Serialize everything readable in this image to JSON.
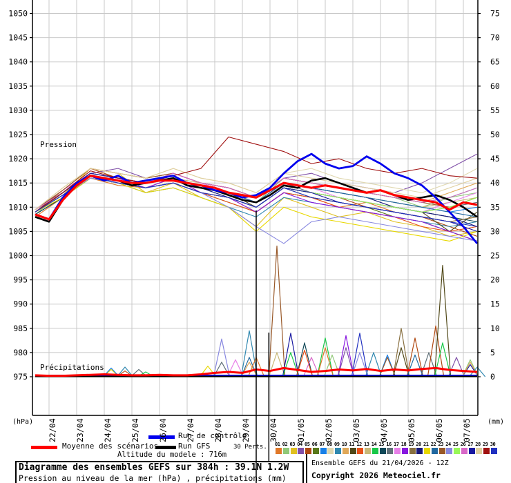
{
  "axis_labels": {
    "pressure_zone": "Pression",
    "precip_zone": "Précipitations",
    "left_unit": "(hPa)",
    "right_unit": "(mm)"
  },
  "legend": {
    "mean_label": "Moyenne des scénarios",
    "control_label": "Run de contrôle",
    "gfs_label": "Run GFS",
    "perts_label": "30 Perts.",
    "altitude_label": "Altitude du modele : 716m",
    "mean_color": "#FF0000",
    "control_color": "#0000EE",
    "gfs_color": "#000000"
  },
  "footer": {
    "title": "Diagramme des ensembles GEFS sur 384h : 39.1N 1.2W",
    "subtitle": "Pression au niveau de la mer (hPa) , précipitations (mm)",
    "run_info": "Ensemble GEFS du 21/04/2026 - 12Z",
    "copyright": "Copyright 2026 Meteociel.fr"
  },
  "colors": {
    "grid": "#C8C8C8",
    "axis": "#000000",
    "marker": "#000000"
  },
  "chart_data": {
    "type": "line",
    "title": "Diagramme des ensembles GEFS sur 384h : 39.1N 1.2W",
    "x_axis": {
      "labels": [
        "22/04",
        "23/04",
        "24/04",
        "25/04",
        "26/04",
        "27/04",
        "28/04",
        "29/04",
        "30/04",
        "01/05",
        "02/05",
        "03/05",
        "04/05",
        "05/05",
        "06/05",
        "07/05"
      ],
      "run_start": "21/04 - 12Z",
      "hours_span": 384
    },
    "y_left": {
      "label": "Pression",
      "unit": "(hPa)",
      "min": 975,
      "max": 1050,
      "tick_step": 5
    },
    "y_right": {
      "label": "Précipitations",
      "unit": "(mm)",
      "min": 0,
      "max": 75,
      "tick_step": 5
    },
    "pressure_series": {
      "mean": {
        "name": "Moyenne des scénarios",
        "color": "#FF0000",
        "step_hours": 12,
        "values": [
          1008.5,
          1007.5,
          1011.5,
          1014.5,
          1016.5,
          1016,
          1015.5,
          1015,
          1015,
          1015.5,
          1015.5,
          1015,
          1014.5,
          1014,
          1013,
          1012.5,
          1012,
          1013.5,
          1015,
          1014.5,
          1014,
          1014.5,
          1014,
          1013.5,
          1013,
          1013.5,
          1012.5,
          1012,
          1011.5,
          1011,
          1009.5,
          1011,
          1010.5
        ]
      },
      "control": {
        "name": "Run de contrôle",
        "color": "#0000EE",
        "step_hours": 12,
        "values": [
          1008.5,
          1007.5,
          1012,
          1015,
          1016.5,
          1015.5,
          1016.5,
          1015,
          1015.5,
          1016,
          1016.5,
          1015,
          1014.5,
          1013.5,
          1013,
          1012,
          1012.5,
          1014,
          1017,
          1019.5,
          1021,
          1019,
          1018,
          1018.5,
          1020.5,
          1019,
          1017,
          1016,
          1014.5,
          1012,
          1009,
          1006,
          1002.5
        ]
      },
      "gfs": {
        "name": "Run GFS",
        "color": "#000000",
        "step_hours": 12,
        "values": [
          1008,
          1007,
          1011.5,
          1015,
          1016.5,
          1016,
          1015.5,
          1014.5,
          1015,
          1015.5,
          1016,
          1014.5,
          1014,
          1013.5,
          1012.5,
          1011.5,
          1011,
          1012.5,
          1014.5,
          1014,
          1015.5,
          1016,
          1015,
          1014,
          1013,
          1013.5,
          1012.5,
          1011.5,
          1012,
          1012.5,
          1011.5,
          1010,
          1008
        ]
      }
    },
    "perturbations": [
      {
        "id": "01",
        "color": "#E07828",
        "step_hours": 24,
        "pressure": [
          1008,
          1012,
          1016,
          1014.5,
          1014,
          1016,
          1013,
          1012,
          1009,
          1013,
          1012,
          1010,
          1011,
          1009,
          1008,
          1007,
          1008
        ]
      },
      {
        "id": "02",
        "color": "#90C878",
        "step_hours": 24,
        "pressure": [
          1008.5,
          1013,
          1017,
          1016,
          1015,
          1017,
          1015,
          1013,
          1011,
          1016,
          1015,
          1014,
          1013,
          1012,
          1010,
          1012,
          1013
        ]
      },
      {
        "id": "03",
        "color": "#E0C020",
        "step_hours": 24,
        "pressure": [
          1009,
          1012.5,
          1018,
          1017,
          1013,
          1015,
          1012,
          1010,
          1006,
          1012,
          1010,
          1008,
          1009,
          1007,
          1006,
          1004,
          1005
        ]
      },
      {
        "id": "04",
        "color": "#8050A8",
        "step_hours": 24,
        "pressure": [
          1009.5,
          1013,
          1017,
          1018,
          1016,
          1017,
          1015,
          1014,
          1012,
          1016,
          1017,
          1015,
          1014,
          1013,
          1015,
          1018,
          1021
        ]
      },
      {
        "id": "05",
        "color": "#B04810",
        "step_hours": 24,
        "pressure": [
          1009,
          1013.5,
          1018,
          1016,
          1015,
          1016,
          1014,
          1012,
          1010,
          1014,
          1013,
          1012,
          1010,
          1009,
          1008,
          1006,
          1004
        ]
      },
      {
        "id": "06",
        "color": "#587818",
        "step_hours": 24,
        "pressure": [
          1008.5,
          1012,
          1016,
          1015,
          1014,
          1015,
          1013,
          1011,
          1009,
          1013,
          1012,
          1011,
          1010,
          1008,
          1007,
          1005,
          1003
        ]
      },
      {
        "id": "07",
        "color": "#1880E8",
        "step_hours": 24,
        "pressure": [
          1009,
          1013,
          1017,
          1016,
          1015,
          1016,
          1014,
          1013,
          1011,
          1015,
          1014,
          1013,
          1012,
          1011,
          1010,
          1009,
          1010
        ]
      },
      {
        "id": "08",
        "color": "#E0D8B0",
        "step_hours": 24,
        "pressure": [
          1009.5,
          1014,
          1018,
          1017,
          1016,
          1018,
          1016,
          1015,
          1013,
          1017,
          1018,
          1016,
          1015,
          1014,
          1013,
          1015,
          1018
        ]
      },
      {
        "id": "09",
        "color": "#3088B0",
        "step_hours": 24,
        "pressure": [
          1008.5,
          1012,
          1016,
          1015,
          1013,
          1014,
          1012,
          1010,
          1008,
          1012,
          1011,
          1010,
          1009,
          1008,
          1007,
          1006,
          1007
        ]
      },
      {
        "id": "10",
        "color": "#E0A858",
        "step_hours": 24,
        "pressure": [
          1009.5,
          1013.5,
          1018,
          1017,
          1016,
          1017,
          1015,
          1014,
          1012,
          1016,
          1015,
          1014,
          1013,
          1012,
          1011,
          1013,
          1015
        ]
      },
      {
        "id": "11",
        "color": "#504818",
        "step_hours": 24,
        "pressure": [
          1009,
          1013,
          1017,
          1016,
          1015,
          1016,
          1014,
          1013,
          1010,
          1014,
          1013,
          1012,
          1011,
          1010,
          1009,
          1005,
          1009
        ]
      },
      {
        "id": "12",
        "color": "#E85018",
        "step_hours": 24,
        "pressure": [
          1009,
          1012.5,
          1016,
          1015,
          1014,
          1015,
          1013,
          1011,
          1009,
          1013,
          1012,
          1010,
          1009,
          1008,
          1006,
          1005,
          1006
        ]
      },
      {
        "id": "13",
        "color": "#C8B878",
        "step_hours": 24,
        "pressure": [
          1009.5,
          1013,
          1017,
          1016,
          1015,
          1016,
          1015,
          1013,
          1011,
          1015,
          1014,
          1013,
          1012,
          1011,
          1010,
          1011,
          1012
        ]
      },
      {
        "id": "14",
        "color": "#18C848",
        "step_hours": 24,
        "pressure": [
          1009,
          1013,
          1017,
          1016,
          1015,
          1017,
          1015,
          1014,
          1012,
          1016,
          1015,
          1014,
          1013,
          1012,
          1011,
          1012,
          1014
        ]
      },
      {
        "id": "15",
        "color": "#104858",
        "step_hours": 24,
        "pressure": [
          1008.5,
          1012,
          1016,
          1015,
          1014,
          1015,
          1013,
          1012,
          1010,
          1014,
          1013,
          1012,
          1011,
          1010,
          1009,
          1008,
          1007
        ]
      },
      {
        "id": "16",
        "color": "#607078",
        "step_hours": 24,
        "pressure": [
          1009,
          1013,
          1017,
          1016,
          1015,
          1016,
          1014,
          1013,
          1011,
          1015,
          1013,
          1012,
          1011,
          1010,
          1009,
          1010,
          1011
        ]
      },
      {
        "id": "17",
        "color": "#E880E8",
        "step_hours": 24,
        "pressure": [
          1009.5,
          1013.5,
          1017,
          1016,
          1015,
          1017,
          1015,
          1013,
          1011,
          1015,
          1014,
          1012,
          1011,
          1010,
          1009,
          1011,
          1013
        ]
      },
      {
        "id": "18",
        "color": "#8818E0",
        "step_hours": 24,
        "pressure": [
          1009,
          1013,
          1017,
          1016,
          1014,
          1016,
          1013,
          1012,
          1009,
          1013,
          1011,
          1010,
          1009,
          1008,
          1007,
          1005,
          1003
        ]
      },
      {
        "id": "19",
        "color": "#887040",
        "step_hours": 24,
        "pressure": [
          1009,
          1012.5,
          1016,
          1015,
          1014,
          1015,
          1013,
          1012,
          1010,
          1014,
          1012,
          1011,
          1010,
          1009,
          1008,
          1007,
          1008
        ]
      },
      {
        "id": "20",
        "color": "#181878",
        "step_hours": 24,
        "pressure": [
          1009.5,
          1013,
          1017,
          1016,
          1015,
          1016,
          1014,
          1013,
          1011,
          1015,
          1014,
          1013,
          1012,
          1010,
          1009,
          1008,
          1006
        ]
      },
      {
        "id": "21",
        "color": "#E8D800",
        "step_hours": 24,
        "pressure": [
          1009,
          1012,
          1016,
          1015,
          1013,
          1014,
          1012,
          1010,
          1005,
          1010,
          1008,
          1007,
          1006,
          1005,
          1004,
          1003,
          1005
        ]
      },
      {
        "id": "22",
        "color": "#2068A0",
        "step_hours": 24,
        "pressure": [
          1009,
          1013,
          1017,
          1016,
          1015,
          1016,
          1014,
          1013,
          1011,
          1015,
          1014,
          1013,
          1012,
          1011,
          1010,
          1009,
          1008
        ]
      },
      {
        "id": "23",
        "color": "#985828",
        "step_hours": 24,
        "pressure": [
          1009.5,
          1013.5,
          1018,
          1017,
          1016,
          1017,
          1015,
          1014,
          1012,
          1016,
          1015,
          1014,
          1013,
          1012,
          1011,
          1010,
          1012
        ]
      },
      {
        "id": "24",
        "color": "#8888E0",
        "step_hours": 24,
        "pressure": [
          1009,
          1012.5,
          1016,
          1015,
          1014,
          1015,
          1013,
          1010,
          1006,
          1002.5,
          1007,
          1008,
          1007,
          1006,
          1005,
          1004,
          1003
        ]
      },
      {
        "id": "25",
        "color": "#98F858",
        "step_hours": 24,
        "pressure": [
          1009,
          1013,
          1017,
          1016,
          1015,
          1016,
          1014,
          1012,
          1010,
          1014,
          1013,
          1012,
          1011,
          1010,
          1009,
          1010,
          1012
        ]
      },
      {
        "id": "26",
        "color": "#D868C8",
        "step_hours": 24,
        "pressure": [
          1009.5,
          1013,
          1017,
          1016,
          1015,
          1017,
          1015,
          1014,
          1012,
          1016,
          1015,
          1014,
          1013,
          1012,
          1011,
          1012,
          1014
        ]
      },
      {
        "id": "27",
        "color": "#1818A0",
        "step_hours": 24,
        "pressure": [
          1009,
          1013,
          1017,
          1016,
          1015,
          1016,
          1014,
          1012,
          1010,
          1014,
          1013,
          1011,
          1010,
          1009,
          1008,
          1007,
          1005
        ]
      },
      {
        "id": "28",
        "color": "#E0D0A0",
        "step_hours": 24,
        "pressure": [
          1009.5,
          1014,
          1018,
          1017,
          1016,
          1018,
          1016,
          1015,
          1013,
          1017,
          1016,
          1015,
          1014,
          1013,
          1012,
          1014,
          1016
        ]
      },
      {
        "id": "29",
        "color": "#A01010",
        "step_hours": 24,
        "pressure": [
          1009,
          1013,
          1017.5,
          1016,
          1015,
          1016.5,
          1018,
          1024.5,
          1023,
          1021.5,
          1019,
          1020,
          1018,
          1017,
          1018,
          1016.5,
          1016
        ]
      },
      {
        "id": "30",
        "color": "#2030C0",
        "step_hours": 24,
        "pressure": [
          1009,
          1012.5,
          1016.5,
          1015,
          1014,
          1015,
          1013,
          1012,
          1010,
          1014,
          1012,
          1011,
          1010,
          1009,
          1008,
          1007,
          1006
        ]
      }
    ],
    "precip_mean": {
      "color": "#FF0000",
      "step_hours": 12,
      "values": [
        0.3,
        0.2,
        0.2,
        0.3,
        0.4,
        0.5,
        0.4,
        0.3,
        0.3,
        0.4,
        0.3,
        0.3,
        0.5,
        0.8,
        1,
        0.8,
        1.5,
        1.2,
        1.8,
        1.4,
        1,
        1.2,
        1.5,
        1.3,
        1.6,
        1.2,
        1.5,
        1.3,
        1.6,
        1.8,
        1.4,
        1.2,
        1
      ]
    },
    "precip_events": [
      {
        "hour": 66,
        "member": 21,
        "mm": 1.5
      },
      {
        "hour": 66,
        "member": 7,
        "mm": 1.8
      },
      {
        "hour": 78,
        "member": 9,
        "mm": 2
      },
      {
        "hour": 78,
        "member": 5,
        "mm": 1.2
      },
      {
        "hour": 90,
        "member": 16,
        "mm": 1.5
      },
      {
        "hour": 96,
        "member": 14,
        "mm": 1
      },
      {
        "hour": 150,
        "member": 21,
        "mm": 2.2
      },
      {
        "hour": 162,
        "member": 24,
        "mm": 7.8
      },
      {
        "hour": 162,
        "member": 16,
        "mm": 3
      },
      {
        "hour": 174,
        "member": 17,
        "mm": 3.5
      },
      {
        "hour": 186,
        "member": 9,
        "mm": 9.5
      },
      {
        "hour": 186,
        "member": 22,
        "mm": 4
      },
      {
        "hour": 186,
        "member": 10,
        "mm": 3
      },
      {
        "hour": 192,
        "member": 1,
        "mm": 4
      },
      {
        "hour": 210,
        "member": 23,
        "mm": 27
      },
      {
        "hour": 210,
        "member": 13,
        "mm": 5
      },
      {
        "hour": 222,
        "member": 27,
        "mm": 9
      },
      {
        "hour": 222,
        "member": 14,
        "mm": 5
      },
      {
        "hour": 234,
        "member": 15,
        "mm": 7
      },
      {
        "hour": 234,
        "member": 12,
        "mm": 5.5
      },
      {
        "hour": 240,
        "member": 26,
        "mm": 4
      },
      {
        "hour": 252,
        "member": 14,
        "mm": 8
      },
      {
        "hour": 252,
        "member": 1,
        "mm": 6
      },
      {
        "hour": 258,
        "member": 2,
        "mm": 4.5
      },
      {
        "hour": 270,
        "member": 18,
        "mm": 8.5
      },
      {
        "hour": 270,
        "member": 4,
        "mm": 6
      },
      {
        "hour": 282,
        "member": 30,
        "mm": 9
      },
      {
        "hour": 282,
        "member": 24,
        "mm": 5
      },
      {
        "hour": 294,
        "member": 9,
        "mm": 5
      },
      {
        "hour": 306,
        "member": 7,
        "mm": 4.5
      },
      {
        "hour": 306,
        "member": 23,
        "mm": 4
      },
      {
        "hour": 318,
        "member": 19,
        "mm": 10
      },
      {
        "hour": 318,
        "member": 11,
        "mm": 6
      },
      {
        "hour": 330,
        "member": 5,
        "mm": 8
      },
      {
        "hour": 330,
        "member": 22,
        "mm": 4.5
      },
      {
        "hour": 342,
        "member": 16,
        "mm": 5
      },
      {
        "hour": 348,
        "member": 5,
        "mm": 10.5
      },
      {
        "hour": 354,
        "member": 11,
        "mm": 23
      },
      {
        "hour": 354,
        "member": 14,
        "mm": 7
      },
      {
        "hour": 366,
        "member": 4,
        "mm": 4
      },
      {
        "hour": 378,
        "member": 2,
        "mm": 3.5
      },
      {
        "hour": 378,
        "member": 27,
        "mm": 2.5
      },
      {
        "hour": 378,
        "member": 10,
        "mm": 3
      },
      {
        "hour": 384,
        "member": 9,
        "mm": 2
      }
    ],
    "markers": [
      {
        "hour": 192
      },
      {
        "hour": 203
      }
    ]
  }
}
